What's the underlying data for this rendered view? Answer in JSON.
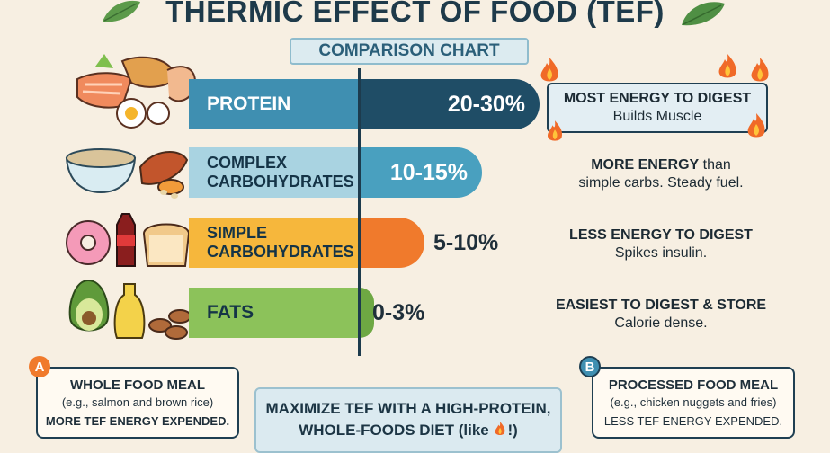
{
  "header": {
    "title": "THERMIC EFFECT OF FOOD (TEF)",
    "subtitle": "COMPARISON CHART"
  },
  "rows": [
    {
      "label": "PROTEIN",
      "range": "20-30%",
      "desc_strong": "MOST ENERGY TO DIGEST",
      "desc_rest": "Builds Muscle",
      "left_color": "#3f8fb1",
      "right_color": "#1f4d66",
      "range_color": "#ffffff"
    },
    {
      "label_line1": "COMPLEX",
      "label_line2": "CARBOHYDRATES",
      "range": "10-15%",
      "desc_strong": "MORE ENERGY",
      "desc_mid": " than",
      "desc_rest": "simple carbs. Steady fuel.",
      "left_color": "#a9d3e1",
      "right_color": "#49a0bf",
      "range_color": "#ffffff"
    },
    {
      "label_line1": "SIMPLE",
      "label_line2": "CARBOHYDRATES",
      "range": "5-10%",
      "desc_strong": "LESS ENERGY TO DIGEST",
      "desc_rest": "Spikes insulin.",
      "left_color": "#f6b73c",
      "right_color": "#f07a2c",
      "range_color": "#1f2f3a"
    },
    {
      "label": "FATS",
      "range": "0-3%",
      "desc_strong": "EASIEST TO DIGEST & STORE",
      "desc_rest": "Calorie dense.",
      "left_color": "#8cc25a",
      "right_color": "#6ea843",
      "range_color": "#1f2f3a"
    }
  ],
  "bottom": {
    "a_badge": "A",
    "a_title": "WHOLE FOOD MEAL",
    "a_example": "(e.g., salmon and brown rice)",
    "a_result": "MORE TEF ENERGY EXPENDED.",
    "b_badge": "B",
    "b_title": "PROCESSED FOOD MEAL",
    "b_example": "(e.g., chicken nuggets and fries)",
    "b_result": "LESS TEF ENERGY EXPENDED.",
    "tip_line1": "MAXIMIZE TEF WITH A HIGH-PROTEIN,",
    "tip_line2_a": "WHOLE-FOODS DIET (like ",
    "tip_line2_b": "!)"
  },
  "icons": {
    "protein_food": "salmon-chicken-egg-icon",
    "complex_food": "grain-bowl-sweet-potato-icon",
    "simple_food": "donut-soda-bread-icon",
    "fat_food": "avocado-oil-almond-icon",
    "flame": "flame-icon",
    "leaf": "leaf-icon"
  }
}
